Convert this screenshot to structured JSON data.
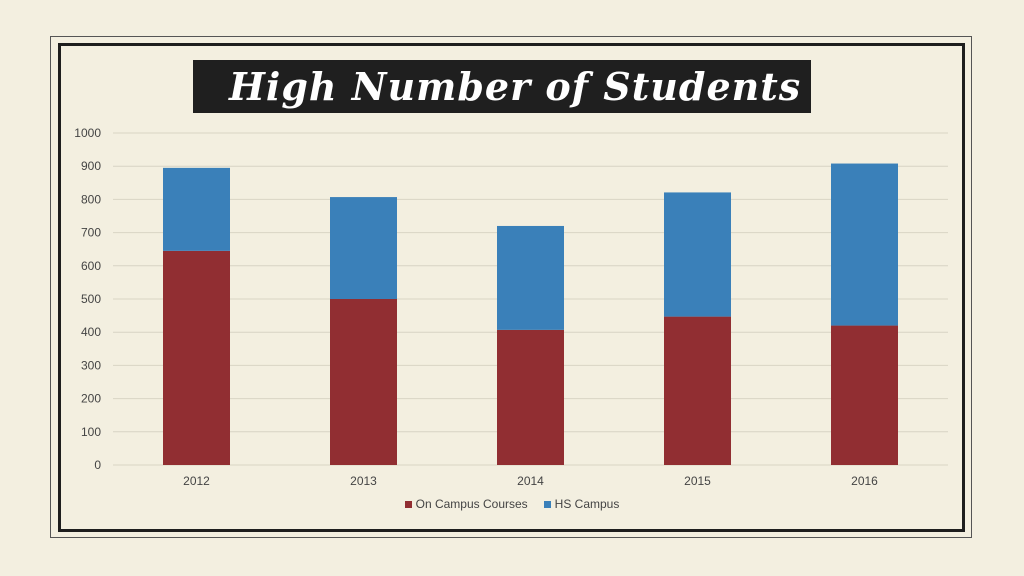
{
  "title": "High Number of Students",
  "colors": {
    "on_campus": "#912e32",
    "hs_campus": "#3a80b9",
    "grid": "#d8d4c4"
  },
  "chart_data": {
    "type": "bar",
    "stacked": true,
    "title": "High Number of Students",
    "categories": [
      "2012",
      "2013",
      "2014",
      "2015",
      "2016"
    ],
    "series": [
      {
        "name": "On Campus Courses",
        "values": [
          645,
          500,
          407,
          447,
          420
        ]
      },
      {
        "name": "HS Campus",
        "values": [
          250,
          307,
          313,
          374,
          488
        ]
      }
    ],
    "ylim": [
      0,
      1000
    ],
    "yticks": [
      0,
      100,
      200,
      300,
      400,
      500,
      600,
      700,
      800,
      900,
      1000
    ],
    "grid": true,
    "legend": "bottom-center",
    "xlabel": "",
    "ylabel": ""
  },
  "legend": {
    "items": [
      {
        "label": "On Campus Courses"
      },
      {
        "label": "HS Campus"
      }
    ]
  }
}
